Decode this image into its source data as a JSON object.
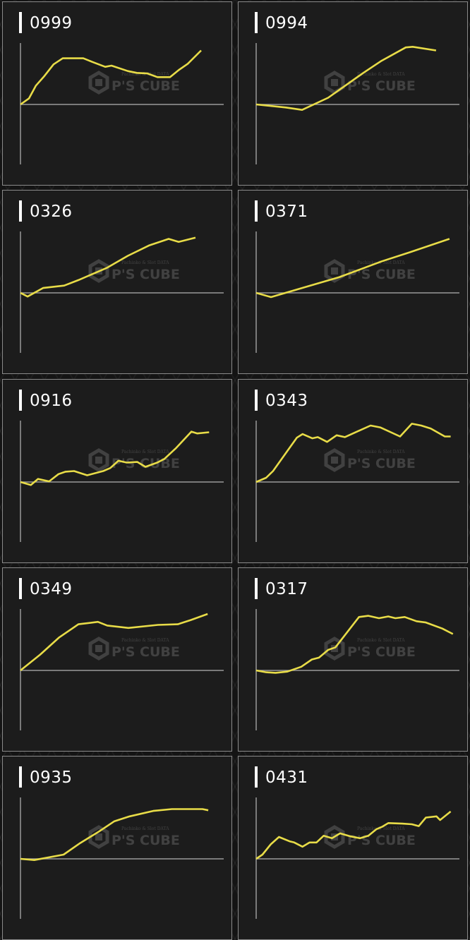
{
  "watermark": {
    "logo": "P'S CUBE",
    "tagline": "Pachinko & Slot DATA"
  },
  "line_color": "#e8dc48",
  "axis_color": "#9a9a9a",
  "chart_data": [
    {
      "type": "line",
      "title": "0999",
      "xlim": [
        0,
        100
      ],
      "ylim": [
        -100,
        100
      ],
      "grid": false,
      "x": [
        0,
        4.2,
        7.6,
        11.8,
        16.3,
        20.8,
        30.9,
        35.4,
        41.7,
        44.8,
        52.8,
        57.3,
        62.5,
        67.4,
        73.6,
        78,
        82.3,
        88.9
      ],
      "y": [
        0,
        10,
        31,
        47,
        66,
        76,
        76,
        70,
        62,
        64,
        55,
        52,
        51,
        45,
        45,
        57,
        67,
        89
      ]
    },
    {
      "type": "line",
      "title": "0994",
      "xlim": [
        0,
        100
      ],
      "ylim": [
        -100,
        100
      ],
      "grid": false,
      "x": [
        0,
        14.6,
        22.6,
        35.4,
        52.7,
        61.7,
        73.6,
        77,
        88.5
      ],
      "y": [
        0,
        -5,
        -9,
        11,
        52,
        72,
        94,
        95,
        89
      ]
    },
    {
      "type": "line",
      "title": "0326",
      "xlim": [
        0,
        100
      ],
      "ylim": [
        -100,
        100
      ],
      "grid": false,
      "x": [
        0,
        3.5,
        11.1,
        21.5,
        28.5,
        42.4,
        52.8,
        63.2,
        72.9,
        77.8,
        86.1
      ],
      "y": [
        0,
        -6,
        8,
        12,
        21,
        41,
        61,
        78,
        89,
        84,
        91
      ]
    },
    {
      "type": "line",
      "title": "0371",
      "xlim": [
        0,
        100
      ],
      "ylim": [
        -100,
        100
      ],
      "grid": false,
      "x": [
        0,
        7.3,
        23.6,
        41,
        61.8,
        75.7,
        95.1
      ],
      "y": [
        0,
        -7,
        9,
        26,
        52,
        67,
        89
      ]
    },
    {
      "type": "line",
      "title": "0916",
      "xlim": [
        0,
        100
      ],
      "ylim": [
        -100,
        100
      ],
      "grid": false,
      "x": [
        0,
        5.1,
        8.6,
        14.1,
        18.7,
        22.2,
        26.4,
        32.8,
        40.7,
        44.2,
        48.2,
        52.3,
        57.5,
        61.5,
        67.3,
        70.8,
        76.6,
        84.1,
        87,
        92.8
      ],
      "y": [
        0,
        -5,
        5,
        1,
        13,
        17,
        18,
        11,
        18,
        23,
        35,
        32,
        33,
        25,
        32,
        38,
        56,
        83,
        80,
        82
      ]
    },
    {
      "type": "line",
      "title": "0343",
      "xlim": [
        0,
        100
      ],
      "ylim": [
        -100,
        100
      ],
      "grid": false,
      "x": [
        0,
        4.9,
        8.3,
        20,
        22.8,
        27.6,
        30.3,
        34.9,
        39.6,
        43.6,
        56.3,
        61,
        70.8,
        76.6,
        81.2,
        85.9,
        92.8,
        95.7
      ],
      "y": [
        0,
        7,
        18,
        73,
        79,
        72,
        74,
        66,
        77,
        74,
        93,
        90,
        75,
        96,
        93,
        88,
        75,
        75
      ]
    },
    {
      "type": "line",
      "title": "0349",
      "xlim": [
        0,
        100
      ],
      "ylim": [
        -100,
        100
      ],
      "grid": false,
      "x": [
        0,
        9.7,
        18.9,
        28.5,
        38.1,
        42.7,
        53.1,
        67.6,
        77.4,
        83.8,
        92.1
      ],
      "y": [
        0,
        26,
        54,
        76,
        80,
        74,
        70,
        75,
        76,
        83,
        93
      ]
    },
    {
      "type": "line",
      "title": "0317",
      "xlim": [
        0,
        100
      ],
      "ylim": [
        -100,
        100
      ],
      "grid": false,
      "x": [
        0,
        4.9,
        9.5,
        15.3,
        22.2,
        27.4,
        30.9,
        35.5,
        39,
        50.6,
        55.2,
        60.4,
        65,
        68.5,
        73.1,
        78.9,
        83.5,
        91.6,
        96.8
      ],
      "y": [
        0,
        -3,
        -4,
        -2,
        6,
        18,
        21,
        34,
        38,
        88,
        90,
        86,
        89,
        86,
        88,
        81,
        79,
        69,
        60
      ]
    },
    {
      "type": "line",
      "title": "0935",
      "xlim": [
        0,
        100
      ],
      "ylim": [
        -100,
        100
      ],
      "grid": false,
      "x": [
        0,
        6.8,
        21.2,
        29.4,
        38.6,
        46.2,
        53.7,
        65.3,
        74.5,
        89.6,
        92.4
      ],
      "y": [
        0,
        -2,
        7,
        26,
        45,
        62,
        70,
        79,
        82,
        82,
        80
      ]
    },
    {
      "type": "line",
      "title": "0431",
      "xlim": [
        0,
        100
      ],
      "ylim": [
        -100,
        100
      ],
      "grid": false,
      "x": [
        0,
        3.1,
        7.2,
        11.2,
        16.4,
        18.7,
        22.8,
        26.3,
        29.7,
        33.2,
        37.3,
        41.3,
        46.5,
        51.1,
        55.2,
        59.2,
        62.1,
        65,
        71.9,
        76.6,
        80,
        83.5,
        88.7,
        90.5,
        95.7
      ],
      "y": [
        0,
        7,
        24,
        36,
        29,
        27,
        20,
        27,
        27,
        38,
        34,
        42,
        37,
        34,
        38,
        49,
        53,
        59,
        58,
        57,
        54,
        68,
        70,
        64,
        78
      ]
    }
  ]
}
